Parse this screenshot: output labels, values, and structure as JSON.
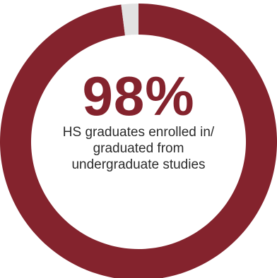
{
  "chart_data": {
    "type": "pie",
    "style": "donut",
    "slices": [
      {
        "label": "enrolled in/graduated from undergraduate studies",
        "value": 98,
        "color": "#84232d"
      },
      {
        "label": "",
        "value": 2,
        "color": "#e2e2e2"
      }
    ],
    "center_value": "98%",
    "center_caption": [
      "HS graduates enrolled in/",
      "graduated from",
      "undergraduate studies"
    ]
  },
  "colors": {
    "accent": "#84232d",
    "remainder": "#e2e2e2",
    "caption_text": "#2b2b2b"
  }
}
